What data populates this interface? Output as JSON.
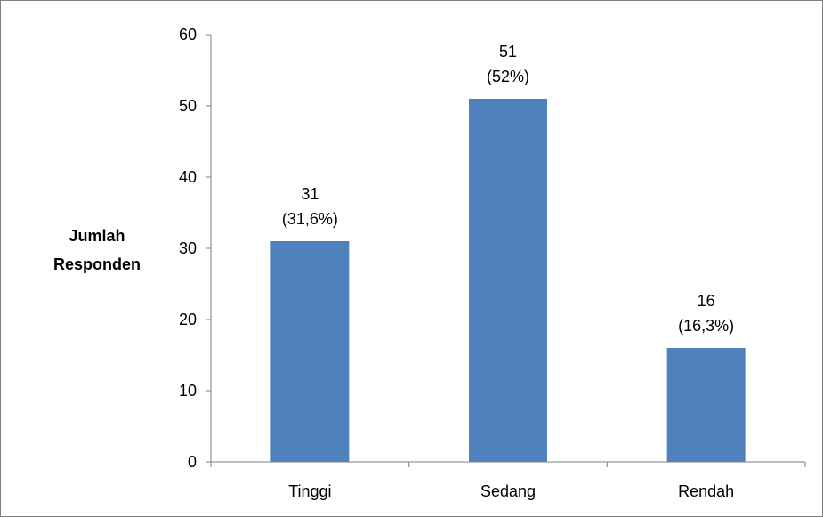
{
  "chart_data": {
    "type": "bar",
    "categories": [
      "Tinggi",
      "Sedang",
      "Rendah"
    ],
    "values": [
      31,
      51,
      16
    ],
    "data_labels": [
      [
        "31",
        "(31,6%)"
      ],
      [
        "51",
        "(52%)"
      ],
      [
        "16",
        "(16,3%)"
      ]
    ],
    "title": "",
    "xlabel": "",
    "ylabel_lines": [
      "Jumlah",
      "Responden"
    ],
    "ylim": [
      0,
      60
    ],
    "yticks": [
      0,
      10,
      20,
      30,
      40,
      50,
      60
    ],
    "grid": false,
    "legend": "none",
    "bar_color": "#4f81bd"
  }
}
